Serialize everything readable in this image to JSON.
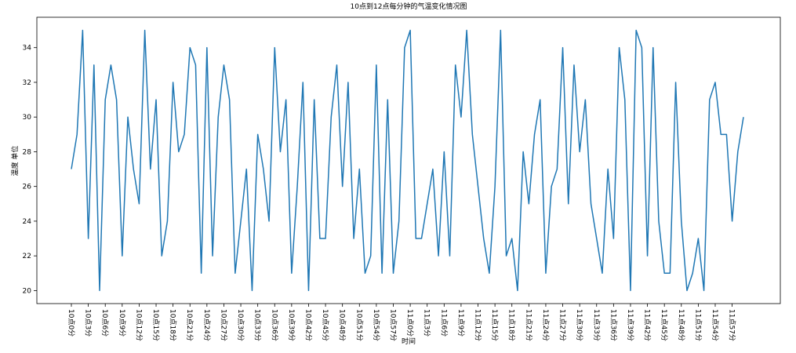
{
  "chart_data": {
    "type": "line",
    "title": "10点到12点每分钟的气温变化情况图",
    "x_label": "时间",
    "y_label": "温度 单位",
    "color": "#1f77b4",
    "categories": [
      "10点0分",
      null,
      null,
      "10点3分",
      null,
      null,
      "10点6分",
      null,
      null,
      "10点9分",
      null,
      null,
      "10点12分",
      null,
      null,
      "10点15分",
      null,
      null,
      "10点18分",
      null,
      null,
      "10点21分",
      null,
      null,
      "10点24分",
      null,
      null,
      "10点27分",
      null,
      null,
      "10点30分",
      null,
      null,
      "10点33分",
      null,
      null,
      "10点36分",
      null,
      null,
      "10点39分",
      null,
      null,
      "10点42分",
      null,
      null,
      "10点45分",
      null,
      null,
      "10点48分",
      null,
      null,
      "10点51分",
      null,
      null,
      "10点54分",
      null,
      null,
      "10点57分",
      null,
      null,
      "11点0分",
      null,
      null,
      "11点3分",
      null,
      null,
      "11点6分",
      null,
      null,
      "11点9分",
      null,
      null,
      "11点12分",
      null,
      null,
      "11点15分",
      null,
      null,
      "11点18分",
      null,
      null,
      "11点21分",
      null,
      null,
      "11点24分",
      null,
      null,
      "11点27分",
      null,
      null,
      "11点30分",
      null,
      null,
      "11点33分",
      null,
      null,
      "11点36分",
      null,
      null,
      "11点39分",
      null,
      null,
      "11点42分",
      null,
      null,
      "11点45分",
      null,
      null,
      "11点48分",
      null,
      null,
      "11点51分",
      null,
      null,
      "11点54分",
      null,
      null,
      "11点57分",
      null,
      null
    ],
    "values": [
      27,
      29,
      35,
      23,
      33,
      20,
      31,
      33,
      31,
      22,
      30,
      27,
      25,
      35,
      27,
      31,
      22,
      24,
      32,
      28,
      29,
      34,
      33,
      21,
      34,
      22,
      30,
      33,
      31,
      21,
      24,
      27,
      20,
      29,
      27,
      24,
      34,
      28,
      31,
      21,
      26,
      32,
      20,
      31,
      23,
      23,
      30,
      33,
      26,
      32,
      23,
      27,
      21,
      22,
      33,
      21,
      31,
      21,
      24,
      34,
      35,
      23,
      23,
      25,
      27,
      22,
      28,
      22,
      33,
      30,
      35,
      29,
      26,
      23,
      21,
      26,
      35,
      22,
      23,
      20,
      28,
      25,
      29,
      31,
      21,
      26,
      27,
      34,
      25,
      33,
      28,
      31,
      25,
      23,
      21,
      27,
      23,
      34,
      31,
      20,
      35,
      34,
      22,
      34,
      24,
      21,
      21,
      32,
      24,
      20,
      21,
      23,
      20,
      31,
      32,
      29,
      29,
      24,
      28,
      30
    ],
    "ylim": [
      19.25,
      35.75
    ],
    "yticks": [
      20,
      22,
      24,
      26,
      28,
      30,
      32,
      34
    ]
  }
}
